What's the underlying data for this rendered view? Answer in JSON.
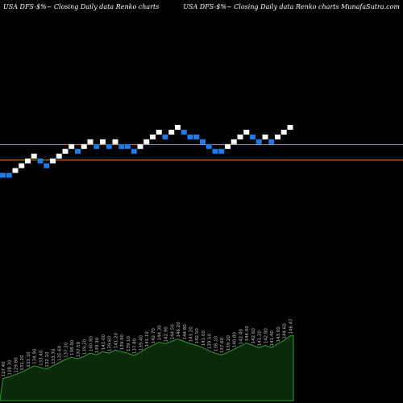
{
  "header": {
    "left": "USA DFS-$%~  Closing Daily data  Renko  charts",
    "right": "USA DFS-$%~  Closing Daily data  Renko  charts MunafaSutra.com"
  },
  "colors": {
    "background": "#000000",
    "up_brick": "#ffffff",
    "down_brick": "#1e7be8",
    "ref_line": "#d9822b",
    "volume_fill": "#0b2a0b",
    "volume_stroke": "#2e9e2e",
    "label": "#c8c8c8"
  },
  "chart_data": {
    "type": "renko",
    "title": "",
    "xlabel": "",
    "ylabel": "",
    "bricks": [
      {
        "level": 0,
        "dir": "down"
      },
      {
        "level": 0,
        "dir": "down"
      },
      {
        "level": 1,
        "dir": "up"
      },
      {
        "level": 2,
        "dir": "up"
      },
      {
        "level": 3,
        "dir": "up"
      },
      {
        "level": 4,
        "dir": "up"
      },
      {
        "level": 3,
        "dir": "down"
      },
      {
        "level": 2,
        "dir": "down"
      },
      {
        "level": 3,
        "dir": "up"
      },
      {
        "level": 4,
        "dir": "up"
      },
      {
        "level": 5,
        "dir": "up"
      },
      {
        "level": 6,
        "dir": "up"
      },
      {
        "level": 5,
        "dir": "down"
      },
      {
        "level": 6,
        "dir": "up"
      },
      {
        "level": 7,
        "dir": "up"
      },
      {
        "level": 6,
        "dir": "down"
      },
      {
        "level": 7,
        "dir": "up"
      },
      {
        "level": 6,
        "dir": "down"
      },
      {
        "level": 7,
        "dir": "up"
      },
      {
        "level": 6,
        "dir": "down"
      },
      {
        "level": 6,
        "dir": "down"
      },
      {
        "level": 5,
        "dir": "down"
      },
      {
        "level": 6,
        "dir": "up"
      },
      {
        "level": 7,
        "dir": "up"
      },
      {
        "level": 8,
        "dir": "up"
      },
      {
        "level": 9,
        "dir": "up"
      },
      {
        "level": 8,
        "dir": "down"
      },
      {
        "level": 9,
        "dir": "up"
      },
      {
        "level": 10,
        "dir": "up"
      },
      {
        "level": 9,
        "dir": "down"
      },
      {
        "level": 8,
        "dir": "down"
      },
      {
        "level": 8,
        "dir": "down"
      },
      {
        "level": 7,
        "dir": "down"
      },
      {
        "level": 6,
        "dir": "down"
      },
      {
        "level": 5,
        "dir": "down"
      },
      {
        "level": 5,
        "dir": "down"
      },
      {
        "level": 6,
        "dir": "up"
      },
      {
        "level": 7,
        "dir": "up"
      },
      {
        "level": 8,
        "dir": "up"
      },
      {
        "level": 9,
        "dir": "up"
      },
      {
        "level": 8,
        "dir": "down"
      },
      {
        "level": 7,
        "dir": "down"
      },
      {
        "level": 8,
        "dir": "up"
      },
      {
        "level": 7,
        "dir": "down"
      },
      {
        "level": 8,
        "dir": "up"
      },
      {
        "level": 9,
        "dir": "up"
      },
      {
        "level": 10,
        "dir": "up"
      }
    ],
    "volume": [
      28,
      30,
      33,
      36,
      40,
      44,
      42,
      40,
      44,
      48,
      52,
      55,
      53,
      56,
      60,
      58,
      62,
      60,
      64,
      62,
      60,
      57,
      61,
      66,
      70,
      74,
      72,
      75,
      78,
      75,
      72,
      70,
      67,
      63,
      60,
      58,
      61,
      65,
      69,
      73,
      70,
      67,
      70,
      67,
      72,
      76,
      82
    ],
    "price_labels": [
      "127.40",
      "128.30",
      "129.80",
      "131.20",
      "133.10",
      "134.90",
      "133.40",
      "132.10",
      "133.70",
      "135.60",
      "137.20",
      "138.90",
      "137.50",
      "139.20",
      "140.80",
      "139.30",
      "141.00",
      "139.60",
      "141.20",
      "139.90",
      "139.10",
      "137.80",
      "139.40",
      "141.10",
      "142.70",
      "144.30",
      "142.90",
      "144.50",
      "146.20",
      "144.80",
      "143.20",
      "142.50",
      "141.00",
      "139.50",
      "138.10",
      "137.60",
      "139.20",
      "140.80",
      "142.40",
      "144.00",
      "142.60",
      "141.20",
      "142.80",
      "141.40",
      "143.00",
      "144.60",
      "146.47"
    ]
  }
}
